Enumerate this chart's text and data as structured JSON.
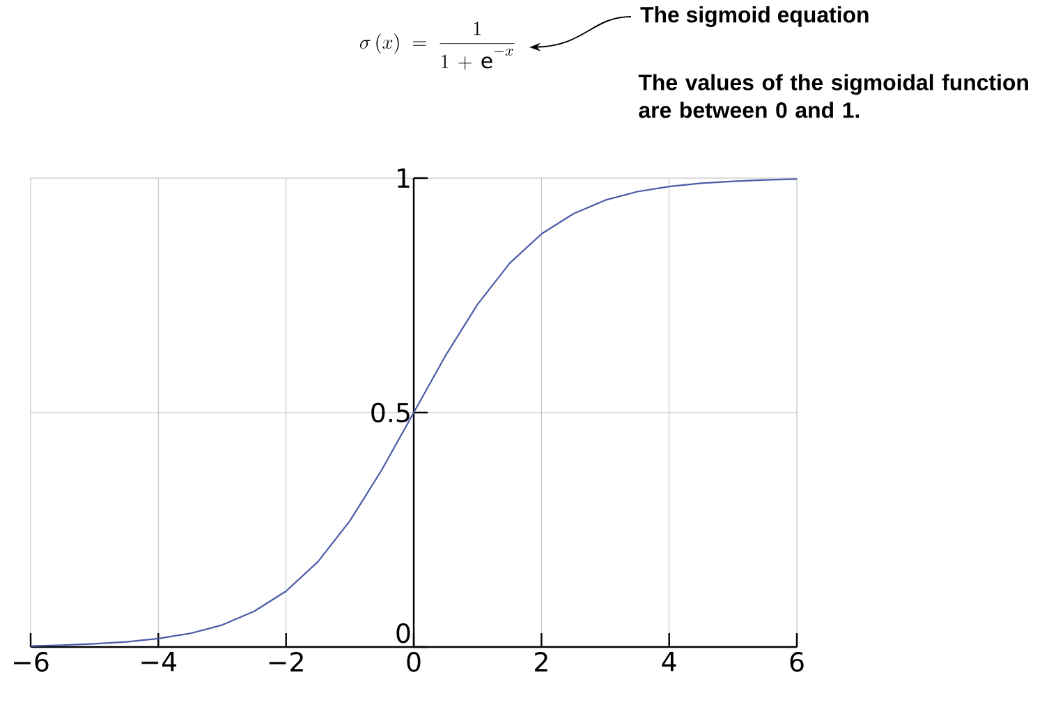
{
  "chart_data": {
    "type": "line",
    "annotations": [
      "\\sigma\\,(x)\\; = \\;\\frac{1}{1\\,+\\,\\mathrm{e}^{-x}}",
      "The sigmoid equation",
      "The values of the sigmoidal function are between 0 and 1."
    ],
    "x": [
      -6,
      -5.5,
      -5,
      -4.5,
      -4,
      -3.5,
      -3,
      -2.5,
      -2,
      -1.5,
      -1,
      -0.5,
      0,
      0.5,
      1,
      1.5,
      2,
      2.5,
      3,
      3.5,
      4,
      4.5,
      5,
      5.5,
      6
    ],
    "series": [
      {
        "color": "#4a5aa8",
        "values": [
          0.002,
          0.004,
          0.007,
          0.011,
          0.018,
          0.029,
          0.047,
          0.076,
          0.119,
          0.182,
          0.269,
          0.378,
          0.5,
          0.622,
          0.731,
          0.818,
          0.881,
          0.924,
          0.953,
          0.971,
          0.982,
          0.989,
          0.993,
          0.996,
          0.998
        ]
      }
    ],
    "xlim": [
      -6,
      6
    ],
    "ylim": [
      0,
      1
    ],
    "xticks": [
      {
        "value": -6,
        "label": "−6"
      },
      {
        "value": -4,
        "label": "−4"
      },
      {
        "value": -2,
        "label": "−2"
      },
      0,
      2,
      4,
      6
    ],
    "yticks": [
      0,
      0.5,
      1
    ],
    "grid": true,
    "marker": "none",
    "line_style": "solid"
  }
}
